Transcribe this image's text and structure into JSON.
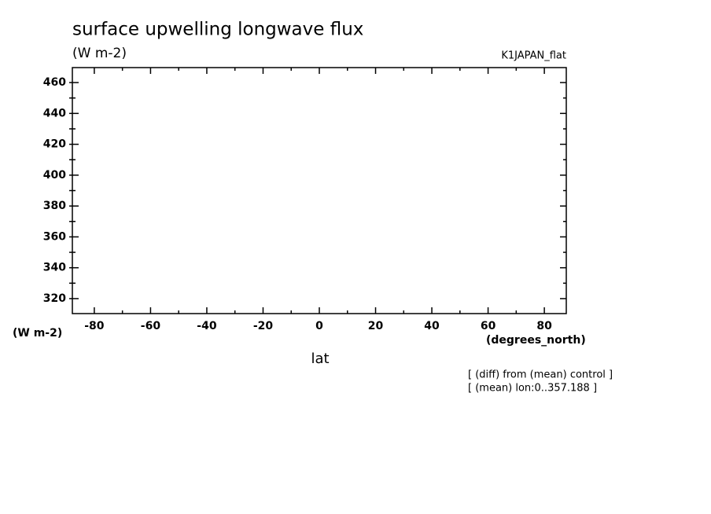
{
  "chart_data": {
    "type": "line",
    "title": "surface upwelling longwave flux",
    "subtitle": "(W m-2)",
    "run_label": "K1JAPAN_flat",
    "y_unit_label": "(W m-2)",
    "x_unit_label": "(degrees_north)",
    "xlabel": "lat",
    "annotations": [
      "[ (diff) from (mean) control ]",
      "[ (mean) lon:0..357.188 ]"
    ],
    "xlim": [
      -87.8,
      87.8
    ],
    "xticks": [
      -80,
      -60,
      -40,
      -20,
      0,
      20,
      40,
      60,
      80
    ],
    "xminorticks": [
      -70,
      -50,
      -30,
      -10,
      10,
      30,
      50,
      70
    ],
    "ylim": [
      310.3,
      469.7
    ],
    "yticks": [
      320,
      340,
      360,
      380,
      400,
      420,
      440,
      460
    ],
    "yminorticks": [
      330,
      350,
      370,
      390,
      410,
      430,
      450
    ],
    "series": []
  }
}
